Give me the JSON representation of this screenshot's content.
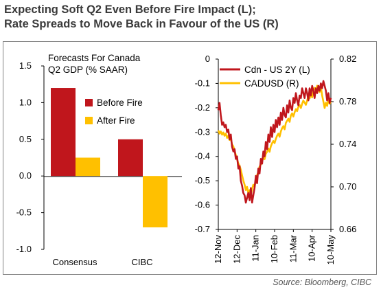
{
  "title": {
    "line1": "Expecting Soft Q2 Even Before Fire Impact (L);",
    "line2": "Rate Spreads to Move Back in Favour of the US (R)"
  },
  "source": "Source: Bloomberg, CIBC",
  "chart_data": [
    {
      "type": "bar",
      "title": "Forecasts For Canada Q2 GDP (% SAAR)",
      "title_lines": [
        "Forecasts For Canada",
        "Q2 GDP (% SAAR)"
      ],
      "categories": [
        "Consensus",
        "CIBC"
      ],
      "series": [
        {
          "name": "Before Fire",
          "color": "#c0161c",
          "values": [
            1.2,
            0.5
          ]
        },
        {
          "name": "After Fire",
          "color": "#ffc000",
          "values": [
            0.25,
            -0.7
          ]
        }
      ],
      "ylim": [
        -1.0,
        1.5
      ],
      "yticks": [
        -1.0,
        -0.5,
        0.0,
        0.5,
        1.0,
        1.5
      ],
      "ytick_labels": [
        "-1.0",
        "-0.5",
        "0.0",
        "0.5",
        "1.0",
        "1.5"
      ],
      "legend": "right"
    },
    {
      "type": "line",
      "x_tick_labels": [
        "12-Nov",
        "12-Dec",
        "11-Jan",
        "10-Feb",
        "11-Mar",
        "10-Apr",
        "10-May"
      ],
      "y_left": {
        "ylim": [
          -0.7,
          0.0
        ],
        "tick_labels": [
          "0",
          "-0.1",
          "-0.2",
          "-0.3",
          "-0.4",
          "-0.5",
          "-0.6",
          "-0.7"
        ]
      },
      "y_right": {
        "ylim": [
          0.66,
          0.82
        ],
        "tick_labels": [
          "0.82",
          "0.78",
          "0.74",
          "0.70",
          "0.66"
        ]
      },
      "legend": "top",
      "series": [
        {
          "name": "Cdn - US 2Y (L)",
          "axis": "left",
          "color": "#c0161c",
          "x": [
            0,
            2,
            4,
            6,
            8,
            10,
            12,
            14,
            16,
            18,
            20,
            22,
            24,
            26,
            28,
            30,
            32,
            34,
            36,
            38,
            40,
            42,
            44,
            46,
            48,
            50,
            52,
            54,
            56,
            58,
            60,
            62,
            64,
            66,
            68,
            70,
            72,
            74,
            76,
            78,
            80,
            82,
            84,
            86,
            88,
            90,
            92,
            94,
            96,
            98,
            100,
            102,
            104,
            106,
            108,
            110,
            112,
            114,
            116,
            118,
            120,
            122,
            124,
            126,
            128,
            130,
            132,
            134,
            136,
            138,
            140,
            142,
            144,
            146,
            148,
            150,
            152,
            154,
            156,
            158,
            160,
            162,
            164,
            166,
            168,
            170,
            172,
            174,
            176,
            178,
            180
          ],
          "y": [
            -0.21,
            -0.18,
            -0.23,
            -0.27,
            -0.26,
            -0.28,
            -0.27,
            -0.3,
            -0.29,
            -0.33,
            -0.31,
            -0.36,
            -0.38,
            -0.37,
            -0.41,
            -0.4,
            -0.45,
            -0.44,
            -0.5,
            -0.52,
            -0.55,
            -0.56,
            -0.59,
            -0.57,
            -0.55,
            -0.58,
            -0.53,
            -0.59,
            -0.56,
            -0.53,
            -0.48,
            -0.51,
            -0.45,
            -0.47,
            -0.41,
            -0.43,
            -0.38,
            -0.4,
            -0.34,
            -0.37,
            -0.31,
            -0.34,
            -0.28,
            -0.32,
            -0.27,
            -0.3,
            -0.25,
            -0.28,
            -0.24,
            -0.27,
            -0.22,
            -0.25,
            -0.2,
            -0.23,
            -0.24,
            -0.19,
            -0.22,
            -0.17,
            -0.2,
            -0.21,
            -0.16,
            -0.18,
            -0.14,
            -0.17,
            -0.19,
            -0.15,
            -0.16,
            -0.12,
            -0.14,
            -0.16,
            -0.12,
            -0.14,
            -0.17,
            -0.12,
            -0.15,
            -0.11,
            -0.13,
            -0.16,
            -0.12,
            -0.14,
            -0.11,
            -0.13,
            -0.1,
            -0.12,
            -0.09,
            -0.11,
            -0.13,
            -0.17,
            -0.14,
            -0.18,
            -0.16
          ]
        },
        {
          "name": "CADUSD (R)",
          "axis": "right",
          "color": "#ffc000",
          "x": [
            0,
            2,
            4,
            6,
            8,
            10,
            12,
            14,
            16,
            18,
            20,
            22,
            24,
            26,
            28,
            30,
            32,
            34,
            36,
            38,
            40,
            42,
            44,
            46,
            48,
            50,
            52,
            54,
            56,
            58,
            60,
            62,
            64,
            66,
            68,
            70,
            72,
            74,
            76,
            78,
            80,
            82,
            84,
            86,
            88,
            90,
            92,
            94,
            96,
            98,
            100,
            102,
            104,
            106,
            108,
            110,
            112,
            114,
            116,
            118,
            120,
            122,
            124,
            126,
            128,
            130,
            132,
            134,
            136,
            138,
            140,
            142,
            144,
            146,
            148,
            150,
            152,
            154,
            156,
            158,
            160,
            162,
            164,
            166,
            168,
            170,
            172,
            174,
            176,
            178,
            180
          ],
          "y": [
            0.753,
            0.75,
            0.752,
            0.749,
            0.751,
            0.748,
            0.75,
            0.746,
            0.748,
            0.744,
            0.745,
            0.74,
            0.738,
            0.734,
            0.73,
            0.726,
            0.722,
            0.72,
            0.716,
            0.711,
            0.706,
            0.702,
            0.697,
            0.7,
            0.694,
            0.697,
            0.692,
            0.698,
            0.702,
            0.7,
            0.706,
            0.711,
            0.714,
            0.719,
            0.721,
            0.724,
            0.728,
            0.726,
            0.731,
            0.733,
            0.736,
            0.733,
            0.738,
            0.741,
            0.743,
            0.741,
            0.745,
            0.748,
            0.75,
            0.747,
            0.752,
            0.755,
            0.757,
            0.754,
            0.76,
            0.762,
            0.764,
            0.761,
            0.767,
            0.769,
            0.766,
            0.77,
            0.773,
            0.771,
            0.775,
            0.777,
            0.774,
            0.778,
            0.781,
            0.779,
            0.777,
            0.781,
            0.785,
            0.783,
            0.787,
            0.784,
            0.79,
            0.793,
            0.791,
            0.795,
            0.792,
            0.789,
            0.794,
            0.786,
            0.78,
            0.774,
            0.779,
            0.776,
            0.782,
            0.778,
            0.78
          ]
        }
      ]
    }
  ]
}
